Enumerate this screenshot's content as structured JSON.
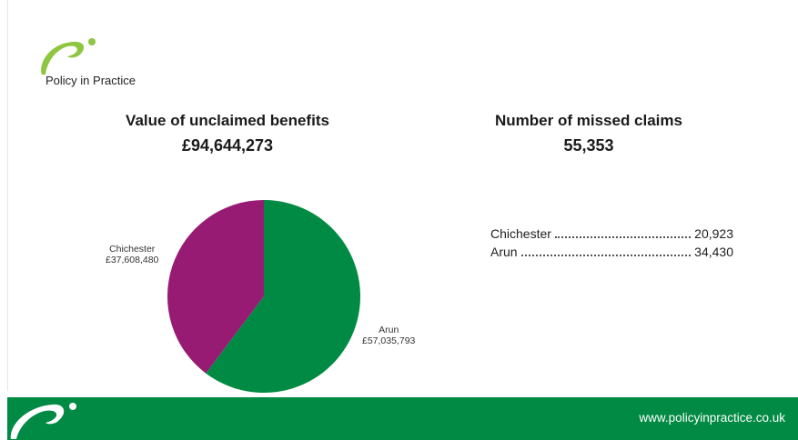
{
  "brand": {
    "name": "Policy in Practice",
    "website": "www.policyinpractice.co.uk",
    "colors": {
      "green": "#018a43",
      "lime": "#8dc63f",
      "purple": "#971b72"
    },
    "icons": [
      "policy-in-practice-logo-icon",
      "footer-swoosh-icon"
    ]
  },
  "left_panel": {
    "heading": "Value of unclaimed benefits",
    "total": "£94,644,273"
  },
  "right_panel": {
    "heading": "Number of missed claims",
    "total": "55,353",
    "rows": [
      {
        "area": "Chichester",
        "value": "20,923"
      },
      {
        "area": "Arun",
        "value": "34,430"
      }
    ]
  },
  "chart_data": {
    "type": "pie",
    "title": "Value of unclaimed benefits",
    "slices": [
      {
        "label": "Chichester",
        "value": 37608480,
        "display": "£37,608,480",
        "color": "#971b72"
      },
      {
        "label": "Arun",
        "value": 57035793,
        "display": "£57,035,793",
        "color": "#018a43"
      }
    ],
    "start": "12 o'clock",
    "direction": "counter-clockwise for Chichester",
    "legend": "none (slice labels outside pie)"
  }
}
